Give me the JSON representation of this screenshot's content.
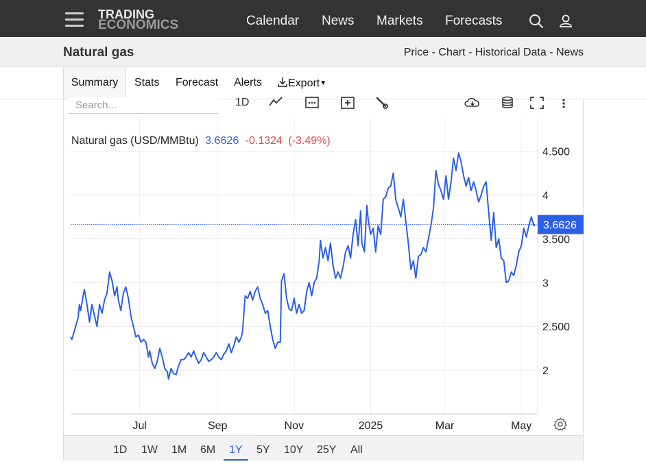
{
  "header": {
    "logo_line1": "TRADING",
    "logo_line2": "ECONOMICS",
    "nav": [
      "Calendar",
      "News",
      "Markets",
      "Forecasts"
    ],
    "icons": [
      "search-icon",
      "user-icon",
      "menu-icon"
    ]
  },
  "subheader": {
    "title": "Natural gas",
    "links": "Price - Chart - Historical Data - News"
  },
  "tabs": {
    "summary": "Summary",
    "stats": "Stats",
    "forecast": "Forecast",
    "alerts": "Alerts",
    "export": "Export"
  },
  "toolbar": {
    "search_placeholder": "Search...",
    "interval": "1D"
  },
  "legend": {
    "name": "Natural gas (USD/MMBtu)",
    "price": "3.6626",
    "change": "-0.1324",
    "change_pct": "(-3.49%)"
  },
  "colors": {
    "line": "#2b5fe6",
    "negative": "#e0474c",
    "price_tag": "#2b5fe6"
  },
  "ranges": [
    "1D",
    "1W",
    "1M",
    "6M",
    "1Y",
    "5Y",
    "10Y",
    "25Y",
    "All"
  ],
  "active_range": "1Y",
  "chart_data": {
    "type": "line",
    "current_value": 3.6626,
    "current_label": "3.6626",
    "ylim": [
      1.5,
      4.88
    ],
    "yticks": [
      2,
      2.5,
      3,
      3.5,
      4,
      4.5
    ],
    "ytick_labels": [
      "2",
      "2.500",
      "3",
      "3.500",
      "4",
      "4.500"
    ],
    "xlim": [
      "2024-05-07",
      "2025-05-14"
    ],
    "xticks": [
      {
        "date": "2024-07-01",
        "label": "Jul"
      },
      {
        "date": "2024-09-01",
        "label": "Sep"
      },
      {
        "date": "2024-11-01",
        "label": "Nov"
      },
      {
        "date": "2025-01-01",
        "label": "2025"
      },
      {
        "date": "2025-03-01",
        "label": "Mar"
      },
      {
        "date": "2025-05-01",
        "label": "May"
      }
    ],
    "series": [
      {
        "values": [
          [
            "2024-05-07",
            2.38
          ],
          [
            "2024-05-08",
            2.35
          ],
          [
            "2024-05-10",
            2.45
          ],
          [
            "2024-05-13",
            2.6
          ],
          [
            "2024-05-14",
            2.75
          ],
          [
            "2024-05-15",
            2.68
          ],
          [
            "2024-05-17",
            2.85
          ],
          [
            "2024-05-18",
            2.92
          ],
          [
            "2024-05-20",
            2.75
          ],
          [
            "2024-05-22",
            2.55
          ],
          [
            "2024-05-24",
            2.75
          ],
          [
            "2024-05-26",
            2.62
          ],
          [
            "2024-05-28",
            2.5
          ],
          [
            "2024-05-30",
            2.75
          ],
          [
            "2024-06-01",
            2.65
          ],
          [
            "2024-06-03",
            2.8
          ],
          [
            "2024-06-05",
            2.88
          ],
          [
            "2024-06-07",
            3.12
          ],
          [
            "2024-06-09",
            3.02
          ],
          [
            "2024-06-11",
            2.85
          ],
          [
            "2024-06-13",
            2.95
          ],
          [
            "2024-06-14",
            2.8
          ],
          [
            "2024-06-16",
            2.68
          ],
          [
            "2024-06-18",
            2.88
          ],
          [
            "2024-06-20",
            2.95
          ],
          [
            "2024-06-22",
            2.82
          ],
          [
            "2024-06-24",
            2.62
          ],
          [
            "2024-06-26",
            2.5
          ],
          [
            "2024-06-28",
            2.38
          ],
          [
            "2024-06-30",
            2.4
          ],
          [
            "2024-07-02",
            2.32
          ],
          [
            "2024-07-04",
            2.35
          ],
          [
            "2024-07-06",
            2.32
          ],
          [
            "2024-07-08",
            2.15
          ],
          [
            "2024-07-09",
            2.22
          ],
          [
            "2024-07-11",
            2.08
          ],
          [
            "2024-07-13",
            2.02
          ],
          [
            "2024-07-15",
            2.1
          ],
          [
            "2024-07-17",
            2.25
          ],
          [
            "2024-07-19",
            2.15
          ],
          [
            "2024-07-21",
            2.02
          ],
          [
            "2024-07-23",
            1.98
          ],
          [
            "2024-07-24",
            1.9
          ],
          [
            "2024-07-26",
            2.02
          ],
          [
            "2024-07-28",
            1.96
          ],
          [
            "2024-07-30",
            1.95
          ],
          [
            "2024-08-01",
            2.05
          ],
          [
            "2024-08-03",
            2.12
          ],
          [
            "2024-08-05",
            2.12
          ],
          [
            "2024-08-07",
            2.15
          ],
          [
            "2024-08-09",
            2.2
          ],
          [
            "2024-08-11",
            2.15
          ],
          [
            "2024-08-13",
            2.22
          ],
          [
            "2024-08-15",
            2.14
          ],
          [
            "2024-08-17",
            2.08
          ],
          [
            "2024-08-19",
            2.12
          ],
          [
            "2024-08-21",
            2.2
          ],
          [
            "2024-08-23",
            2.15
          ],
          [
            "2024-08-25",
            2.1
          ],
          [
            "2024-08-27",
            2.12
          ],
          [
            "2024-08-29",
            2.15
          ],
          [
            "2024-08-31",
            2.2
          ],
          [
            "2024-09-02",
            2.15
          ],
          [
            "2024-09-04",
            2.12
          ],
          [
            "2024-09-06",
            2.18
          ],
          [
            "2024-09-08",
            2.22
          ],
          [
            "2024-09-10",
            2.3
          ],
          [
            "2024-09-12",
            2.2
          ],
          [
            "2024-09-14",
            2.28
          ],
          [
            "2024-09-16",
            2.38
          ],
          [
            "2024-09-18",
            2.32
          ],
          [
            "2024-09-20",
            2.38
          ],
          [
            "2024-09-21",
            2.45
          ],
          [
            "2024-09-23",
            2.85
          ],
          [
            "2024-09-25",
            2.82
          ],
          [
            "2024-09-27",
            2.9
          ],
          [
            "2024-09-29",
            2.8
          ],
          [
            "2024-10-01",
            2.9
          ],
          [
            "2024-10-03",
            2.95
          ],
          [
            "2024-10-05",
            2.82
          ],
          [
            "2024-10-07",
            2.75
          ],
          [
            "2024-10-09",
            2.65
          ],
          [
            "2024-10-11",
            2.68
          ],
          [
            "2024-10-13",
            2.5
          ],
          [
            "2024-10-15",
            2.35
          ],
          [
            "2024-10-17",
            2.25
          ],
          [
            "2024-10-19",
            2.32
          ],
          [
            "2024-10-21",
            2.32
          ],
          [
            "2024-10-22",
            3.02
          ],
          [
            "2024-10-24",
            3.1
          ],
          [
            "2024-10-26",
            2.82
          ],
          [
            "2024-10-28",
            2.7
          ],
          [
            "2024-10-30",
            2.68
          ],
          [
            "2024-11-01",
            2.82
          ],
          [
            "2024-11-03",
            2.65
          ],
          [
            "2024-11-05",
            2.75
          ],
          [
            "2024-11-07",
            2.65
          ],
          [
            "2024-11-09",
            2.68
          ],
          [
            "2024-11-11",
            2.9
          ],
          [
            "2024-11-13",
            3.0
          ],
          [
            "2024-11-15",
            2.85
          ],
          [
            "2024-11-17",
            3.0
          ],
          [
            "2024-11-19",
            3.05
          ],
          [
            "2024-11-21",
            3.25
          ],
          [
            "2024-11-22",
            3.48
          ],
          [
            "2024-11-24",
            3.28
          ],
          [
            "2024-11-26",
            3.4
          ],
          [
            "2024-11-28",
            3.25
          ],
          [
            "2024-11-30",
            3.45
          ],
          [
            "2024-12-02",
            3.2
          ],
          [
            "2024-12-04",
            3.05
          ],
          [
            "2024-12-06",
            3.12
          ],
          [
            "2024-12-08",
            3.05
          ],
          [
            "2024-12-10",
            3.18
          ],
          [
            "2024-12-12",
            3.35
          ],
          [
            "2024-12-14",
            3.42
          ],
          [
            "2024-12-16",
            3.28
          ],
          [
            "2024-12-18",
            3.55
          ],
          [
            "2024-12-20",
            3.72
          ],
          [
            "2024-12-22",
            3.42
          ],
          [
            "2024-12-24",
            3.82
          ],
          [
            "2024-12-25",
            3.45
          ],
          [
            "2024-12-27",
            3.35
          ],
          [
            "2024-12-29",
            3.88
          ],
          [
            "2024-12-30",
            3.72
          ],
          [
            "2025-01-01",
            3.55
          ],
          [
            "2025-01-03",
            3.62
          ],
          [
            "2025-01-05",
            3.35
          ],
          [
            "2025-01-07",
            3.65
          ],
          [
            "2025-01-09",
            3.55
          ],
          [
            "2025-01-11",
            3.95
          ],
          [
            "2025-01-13",
            3.98
          ],
          [
            "2025-01-15",
            4.08
          ],
          [
            "2025-01-17",
            4.1
          ],
          [
            "2025-01-19",
            4.25
          ],
          [
            "2025-01-21",
            3.95
          ],
          [
            "2025-01-23",
            3.85
          ],
          [
            "2025-01-25",
            3.75
          ],
          [
            "2025-01-27",
            3.95
          ],
          [
            "2025-01-29",
            3.7
          ],
          [
            "2025-01-31",
            3.45
          ],
          [
            "2025-02-02",
            3.15
          ],
          [
            "2025-02-04",
            3.25
          ],
          [
            "2025-02-06",
            3.05
          ],
          [
            "2025-02-08",
            3.3
          ],
          [
            "2025-02-10",
            3.32
          ],
          [
            "2025-02-12",
            3.4
          ],
          [
            "2025-02-14",
            3.35
          ],
          [
            "2025-02-16",
            3.5
          ],
          [
            "2025-02-18",
            3.65
          ],
          [
            "2025-02-20",
            3.85
          ],
          [
            "2025-02-22",
            4.28
          ],
          [
            "2025-02-24",
            4.12
          ],
          [
            "2025-02-26",
            4.05
          ],
          [
            "2025-02-28",
            3.95
          ],
          [
            "2025-03-02",
            4.22
          ],
          [
            "2025-03-04",
            3.95
          ],
          [
            "2025-03-06",
            4.15
          ],
          [
            "2025-03-08",
            4.42
          ],
          [
            "2025-03-10",
            4.28
          ],
          [
            "2025-03-12",
            4.48
          ],
          [
            "2025-03-14",
            4.38
          ],
          [
            "2025-03-16",
            4.22
          ],
          [
            "2025-03-18",
            4.1
          ],
          [
            "2025-03-20",
            4.2
          ],
          [
            "2025-03-22",
            4.05
          ],
          [
            "2025-03-24",
            4.15
          ],
          [
            "2025-03-26",
            4.05
          ],
          [
            "2025-03-28",
            3.92
          ],
          [
            "2025-03-30",
            4.0
          ],
          [
            "2025-04-01",
            4.1
          ],
          [
            "2025-04-03",
            4.15
          ],
          [
            "2025-04-05",
            3.8
          ],
          [
            "2025-04-07",
            3.48
          ],
          [
            "2025-04-09",
            3.8
          ],
          [
            "2025-04-11",
            3.4
          ],
          [
            "2025-04-13",
            3.5
          ],
          [
            "2025-04-15",
            3.28
          ],
          [
            "2025-04-17",
            3.25
          ],
          [
            "2025-04-19",
            3.0
          ],
          [
            "2025-04-21",
            3.02
          ],
          [
            "2025-04-23",
            3.12
          ],
          [
            "2025-04-25",
            3.08
          ],
          [
            "2025-04-27",
            3.2
          ],
          [
            "2025-04-29",
            3.35
          ],
          [
            "2025-05-01",
            3.42
          ],
          [
            "2025-05-03",
            3.62
          ],
          [
            "2025-05-05",
            3.52
          ],
          [
            "2025-05-07",
            3.65
          ],
          [
            "2025-05-09",
            3.75
          ],
          [
            "2025-05-11",
            3.65
          ],
          [
            "2025-05-12",
            3.66
          ]
        ]
      }
    ]
  }
}
